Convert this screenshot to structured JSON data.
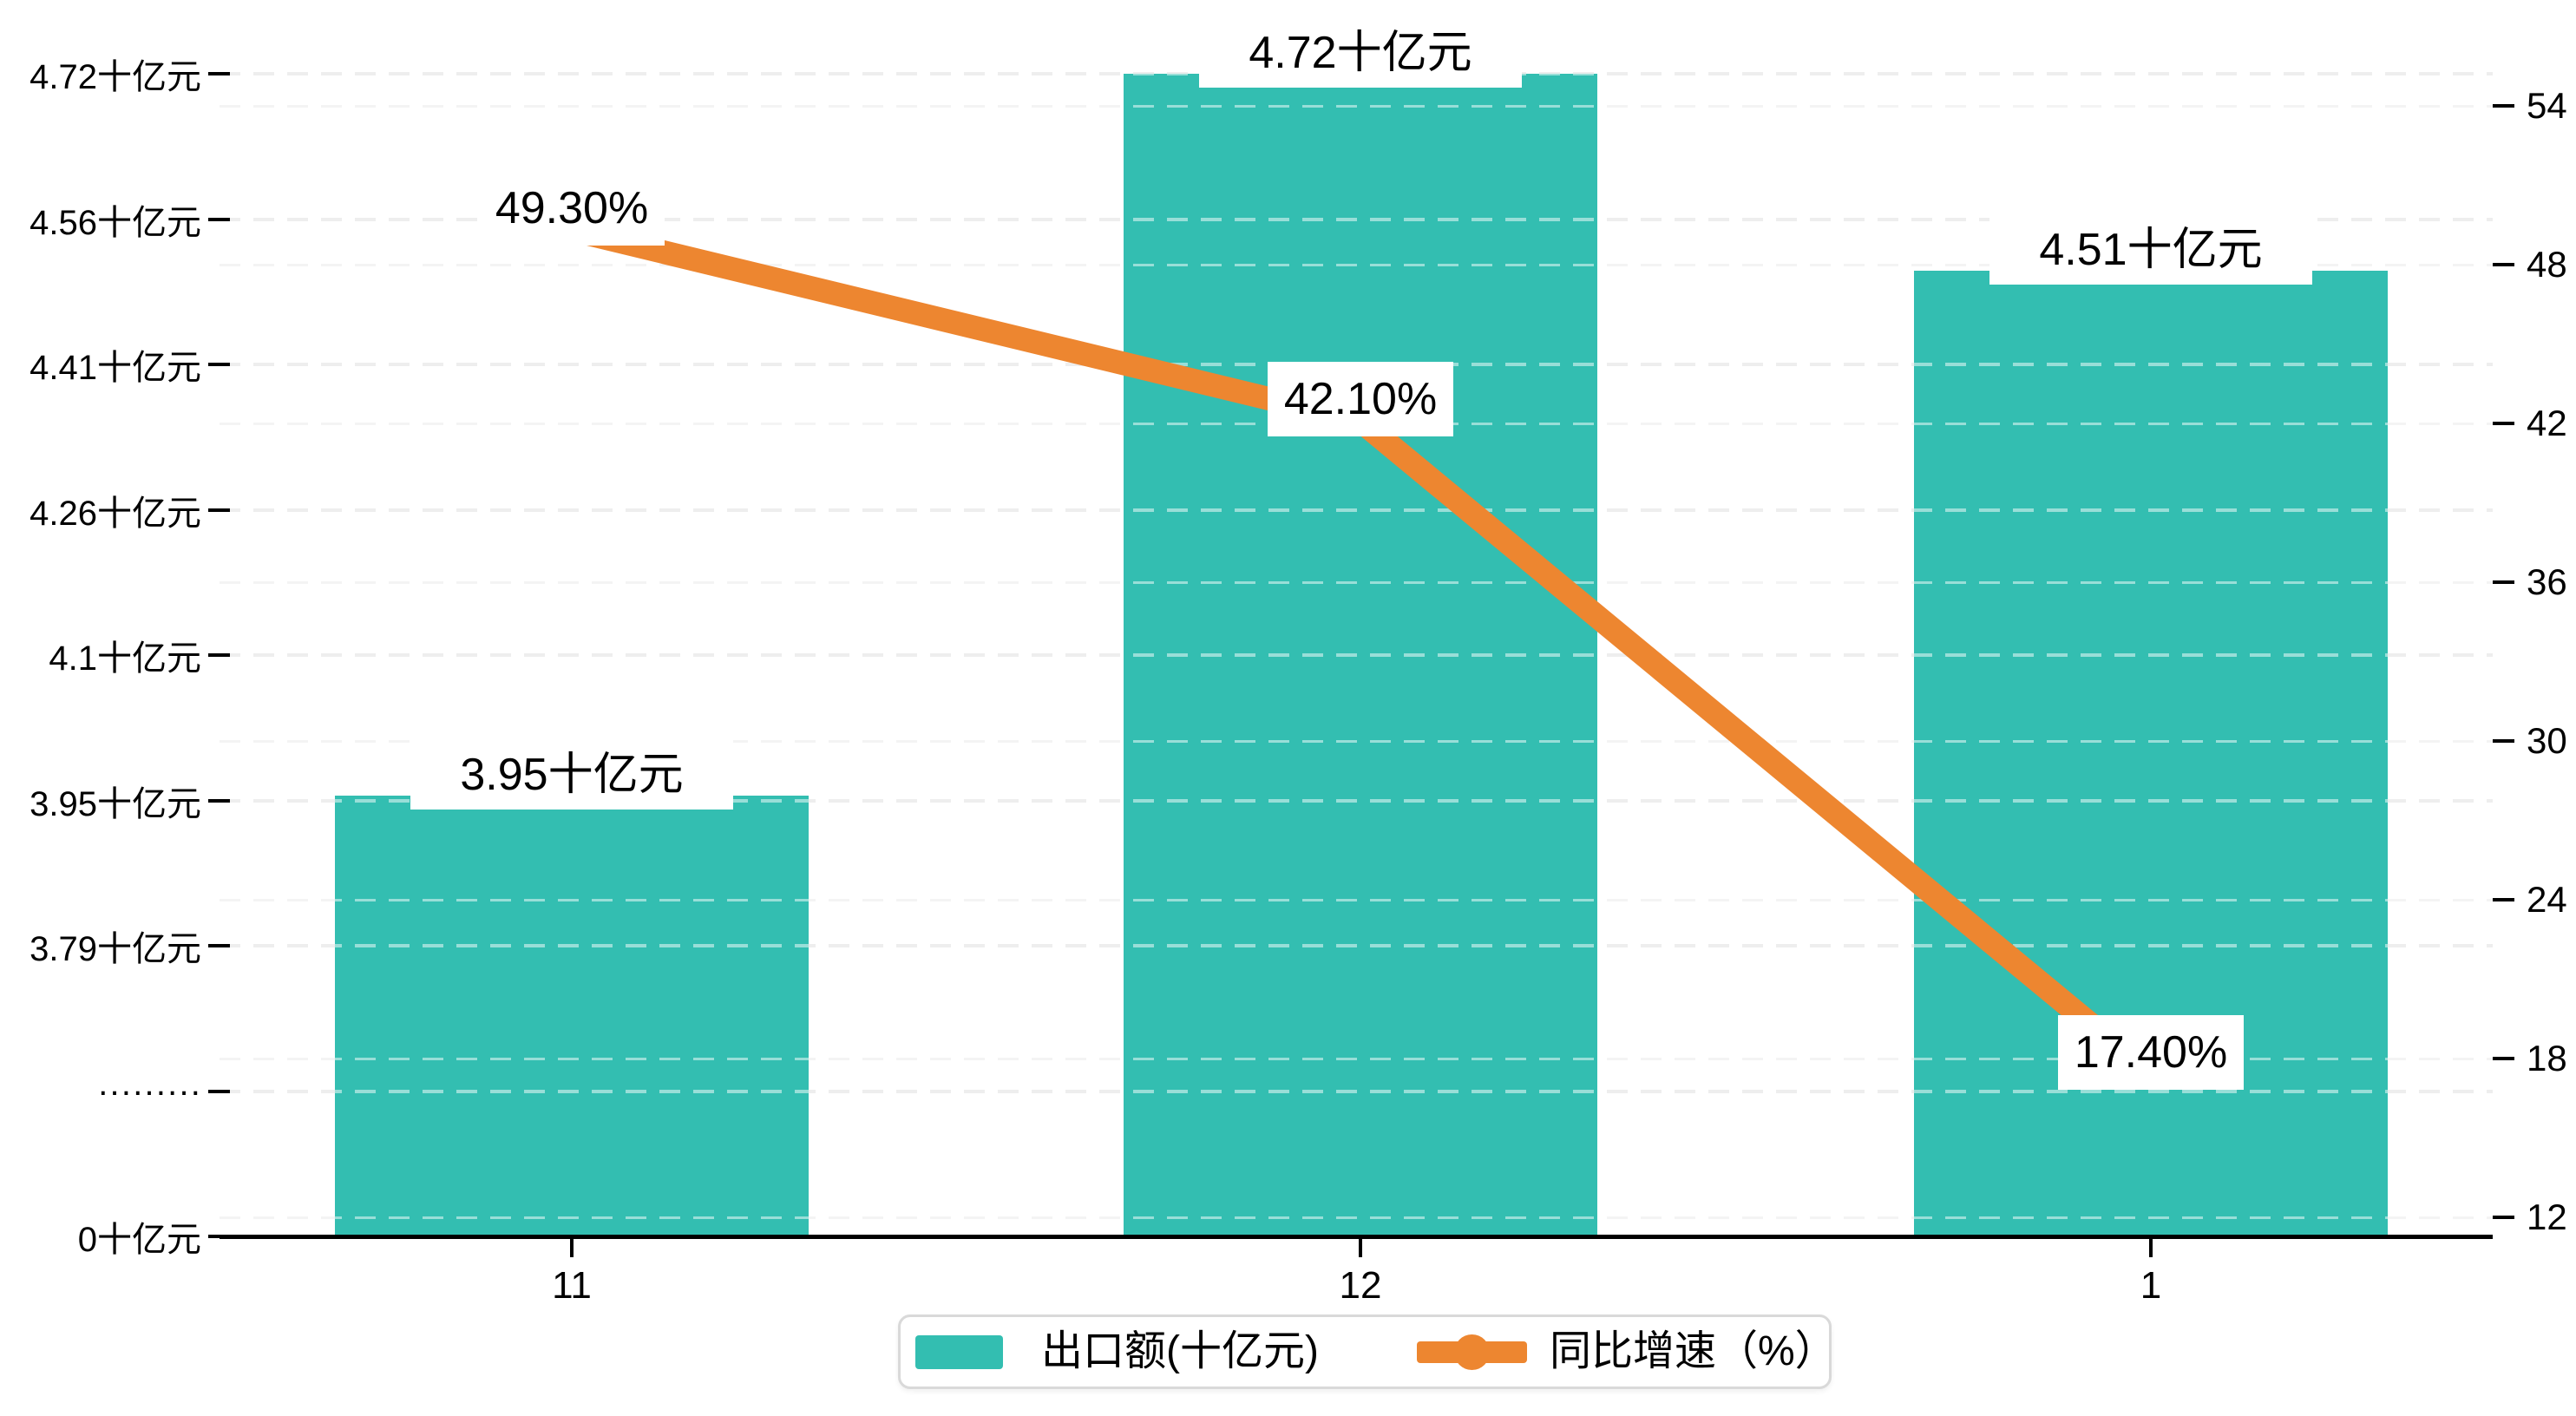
{
  "chart_data": {
    "type": "bar",
    "subtype": "bar-and-line-dual-axis",
    "categories": [
      "11",
      "12",
      "1"
    ],
    "series": [
      {
        "name": "出口额(十亿元)",
        "type": "bar",
        "axis": "left",
        "values": [
          3.95,
          4.72,
          4.51
        ],
        "data_labels": [
          "3.95十亿元",
          "4.72十亿元",
          "4.51十亿元"
        ],
        "color": "#33beb1"
      },
      {
        "name": "同比增速（%）",
        "type": "line",
        "axis": "right",
        "values": [
          49.3,
          42.1,
          17.4
        ],
        "data_labels": [
          "49.30%",
          "42.10%",
          "17.40%"
        ],
        "color": "#ed8630"
      }
    ],
    "left_axis": {
      "tick_labels": [
        "4.72十亿元",
        "4.56十亿元",
        "4.41十亿元",
        "4.26十亿元",
        "4.1十亿元",
        "3.95十亿元",
        "3.79十亿元",
        "·········",
        "0十亿元"
      ],
      "axis_break": true,
      "top_value": 4.72,
      "tick_step_value": 0.155
    },
    "right_axis": {
      "tick_labels": [
        "54",
        "48",
        "42",
        "36",
        "30",
        "24",
        "18",
        "12"
      ],
      "max": 54,
      "step": 6
    },
    "x_axis": {
      "tick_labels": [
        "11",
        "12",
        "1"
      ]
    },
    "legend": {
      "position": "bottom-center",
      "items": [
        {
          "label": "出口额(十亿元)",
          "marker": "bar-swatch",
          "color": "#33beb1"
        },
        {
          "label": "同比增速（%）",
          "marker": "line-with-dot",
          "color": "#ed8630"
        }
      ]
    },
    "grid": "horizontal dashed lines for both axes",
    "background": "#ffffff"
  },
  "colors": {
    "bar": "#33beb1",
    "line": "#ed8630",
    "text": "#000000",
    "axis_line": "#000000",
    "grid_under_left": "#dcdcdc",
    "grid_under_right": "#e9e9e9",
    "grid_over": "rgba(255,255,255,0.5)",
    "label_background": "#ffffff",
    "legend_border": "#d9d9d9"
  }
}
